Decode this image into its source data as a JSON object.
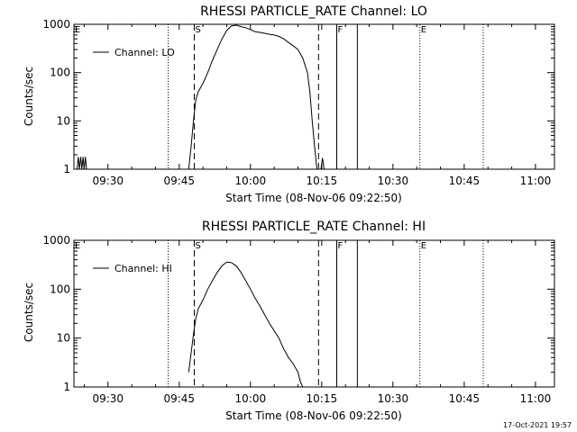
{
  "footer": {
    "timestamp": "17-Oct-2021 19:57"
  },
  "chart_data": [
    {
      "type": "line",
      "title": "RHESSI PARTICLE_RATE Channel: LO",
      "xlabel": "Start Time (08-Nov-06 09:22:50)",
      "ylabel": "Counts/sec",
      "yscale": "log",
      "xlim": [
        "09:22:50",
        "11:04:00"
      ],
      "ylim": [
        1,
        1000
      ],
      "xticks": [
        "09:30",
        "09:45",
        "10:00",
        "10:15",
        "10:30",
        "10:45",
        "11:00"
      ],
      "yticks": [
        "1",
        "10",
        "100",
        "1000"
      ],
      "legend": {
        "position": "top-left",
        "entries": [
          "Channel: LO"
        ]
      },
      "markers": [
        {
          "time": "09:22:50",
          "style": "dotted",
          "label": "E"
        },
        {
          "time": "09:42:40",
          "style": "dotted",
          "label": ""
        },
        {
          "time": "09:48:10",
          "style": "dashed",
          "label": "S"
        },
        {
          "time": "10:14:20",
          "style": "dashed",
          "label": ""
        },
        {
          "time": "10:18:10",
          "style": "solid",
          "label": "F"
        },
        {
          "time": "10:22:30",
          "style": "solid",
          "label": ""
        },
        {
          "time": "10:35:40",
          "style": "dotted",
          "label": "E"
        },
        {
          "time": "10:49:00",
          "style": "dotted",
          "label": ""
        }
      ],
      "series": [
        {
          "name": "Channel: LO",
          "segments": [
            [
              [
                "09:23:30",
                1
              ],
              [
                "09:23:45",
                1.8
              ],
              [
                "09:24:00",
                1
              ],
              [
                "09:24:15",
                1.8
              ],
              [
                "09:24:30",
                1
              ],
              [
                "09:24:45",
                1.8
              ],
              [
                "09:25:00",
                1
              ],
              [
                "09:25:15",
                1.8
              ],
              [
                "09:25:30",
                1
              ]
            ],
            [
              [
                "09:47:00",
                1
              ],
              [
                "09:47:30",
                3
              ],
              [
                "09:48:00",
                10
              ],
              [
                "09:48:30",
                28
              ],
              [
                "09:49:00",
                40
              ],
              [
                "09:50:00",
                60
              ],
              [
                "09:51:00",
                100
              ],
              [
                "09:52:00",
                180
              ],
              [
                "09:53:00",
                300
              ],
              [
                "09:54:00",
                500
              ],
              [
                "09:55:00",
                750
              ],
              [
                "09:56:00",
                920
              ],
              [
                "09:57:00",
                960
              ],
              [
                "09:58:00",
                900
              ],
              [
                "09:59:00",
                850
              ],
              [
                "10:00:00",
                780
              ],
              [
                "10:01:00",
                700
              ],
              [
                "10:02:00",
                680
              ],
              [
                "10:03:00",
                650
              ],
              [
                "10:04:00",
                620
              ],
              [
                "10:05:00",
                600
              ],
              [
                "10:06:00",
                560
              ],
              [
                "10:07:00",
                500
              ],
              [
                "10:08:00",
                420
              ],
              [
                "10:09:00",
                360
              ],
              [
                "10:10:00",
                300
              ],
              [
                "10:11:00",
                200
              ],
              [
                "10:12:00",
                100
              ],
              [
                "10:12:30",
                40
              ],
              [
                "10:13:00",
                10
              ],
              [
                "10:13:30",
                3
              ],
              [
                "10:14:00",
                1
              ]
            ],
            [
              [
                "10:14:50",
                1
              ],
              [
                "10:15:10",
                1.7
              ],
              [
                "10:15:30",
                1
              ]
            ]
          ]
        }
      ]
    },
    {
      "type": "line",
      "title": "RHESSI PARTICLE_RATE Channel: HI",
      "xlabel": "Start Time (08-Nov-06 09:22:50)",
      "ylabel": "Counts/sec",
      "yscale": "log",
      "xlim": [
        "09:22:50",
        "11:04:00"
      ],
      "ylim": [
        1,
        1000
      ],
      "xticks": [
        "09:30",
        "09:45",
        "10:00",
        "10:15",
        "10:30",
        "10:45",
        "11:00"
      ],
      "yticks": [
        "1",
        "10",
        "100",
        "1000"
      ],
      "legend": {
        "position": "top-left",
        "entries": [
          "Channel: HI"
        ]
      },
      "markers": [
        {
          "time": "09:22:50",
          "style": "dotted",
          "label": "E"
        },
        {
          "time": "09:42:40",
          "style": "dotted",
          "label": ""
        },
        {
          "time": "09:48:10",
          "style": "dashed",
          "label": "S"
        },
        {
          "time": "10:14:20",
          "style": "dashed",
          "label": ""
        },
        {
          "time": "10:18:10",
          "style": "solid",
          "label": "F"
        },
        {
          "time": "10:22:30",
          "style": "solid",
          "label": ""
        },
        {
          "time": "10:35:40",
          "style": "dotted",
          "label": "E"
        },
        {
          "time": "10:49:00",
          "style": "dotted",
          "label": ""
        }
      ],
      "series": [
        {
          "name": "Channel: HI",
          "segments": [
            [
              [
                "09:47:00",
                2
              ],
              [
                "09:47:30",
                5
              ],
              [
                "09:48:00",
                12
              ],
              [
                "09:48:30",
                25
              ],
              [
                "09:49:00",
                40
              ],
              [
                "09:50:00",
                60
              ],
              [
                "09:51:00",
                100
              ],
              [
                "09:52:00",
                150
              ],
              [
                "09:53:00",
                220
              ],
              [
                "09:54:00",
                300
              ],
              [
                "09:55:00",
                360
              ],
              [
                "09:56:00",
                350
              ],
              [
                "09:57:00",
                300
              ],
              [
                "09:58:00",
                220
              ],
              [
                "09:59:00",
                150
              ],
              [
                "10:00:00",
                100
              ],
              [
                "10:01:00",
                65
              ],
              [
                "10:02:00",
                45
              ],
              [
                "10:03:00",
                30
              ],
              [
                "10:04:00",
                20
              ],
              [
                "10:05:00",
                14
              ],
              [
                "10:06:00",
                10
              ],
              [
                "10:07:00",
                6
              ],
              [
                "10:08:00",
                4
              ],
              [
                "10:09:00",
                3
              ],
              [
                "10:10:00",
                2
              ],
              [
                "10:10:30",
                1.3
              ],
              [
                "10:11:00",
                1
              ]
            ]
          ]
        }
      ]
    }
  ]
}
